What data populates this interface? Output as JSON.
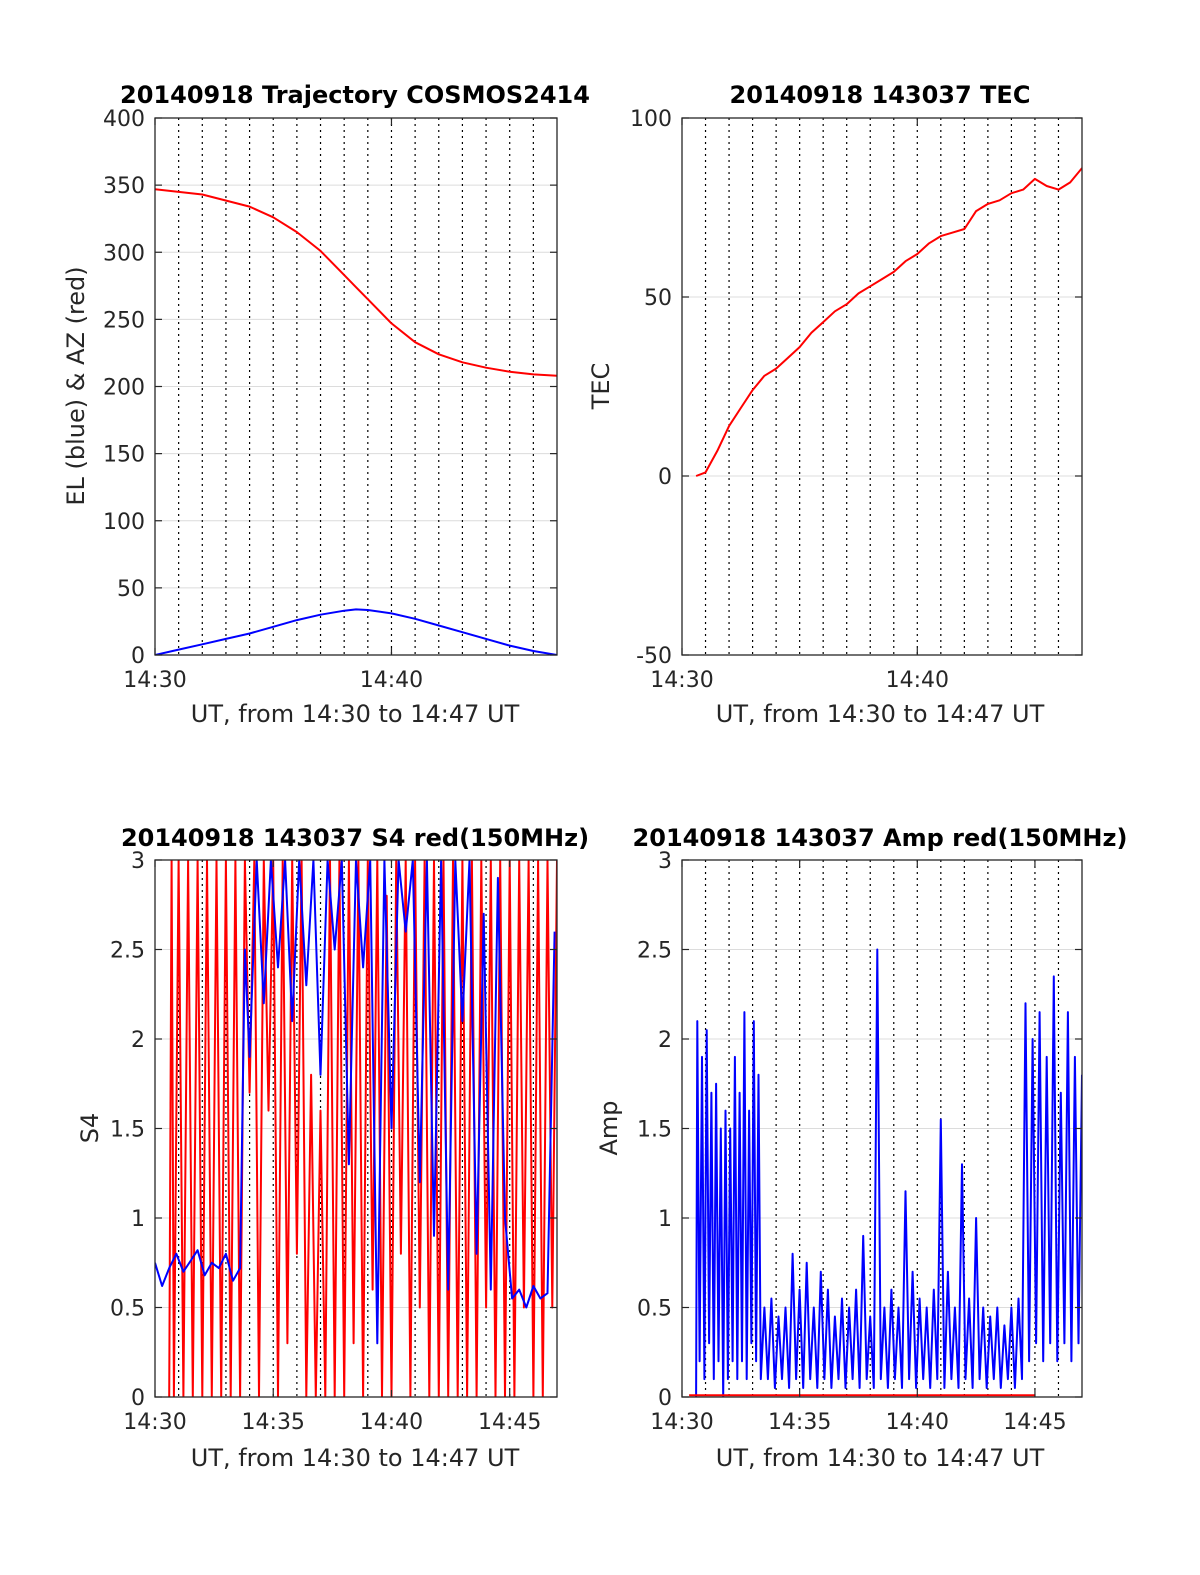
{
  "chart_data": [
    {
      "id": "trajectory",
      "type": "line",
      "title": "20140918 Trajectory COSMOS2414",
      "xlabel": "UT, from 14:30 to 14:47 UT",
      "ylabel": "EL (blue) & AZ (red)",
      "xlim": [
        0,
        17
      ],
      "ylim": [
        0,
        400
      ],
      "xticks": [
        {
          "v": 0,
          "label": "14:30"
        },
        {
          "v": 10,
          "label": "14:40"
        }
      ],
      "yticks": [
        {
          "v": 0,
          "label": "0"
        },
        {
          "v": 50,
          "label": "50"
        },
        {
          "v": 100,
          "label": "100"
        },
        {
          "v": 150,
          "label": "150"
        },
        {
          "v": 200,
          "label": "200"
        },
        {
          "v": 250,
          "label": "250"
        },
        {
          "v": 300,
          "label": "300"
        },
        {
          "v": 350,
          "label": "350"
        },
        {
          "v": 400,
          "label": "400"
        }
      ],
      "grid": true,
      "colors": {
        "AZ": "#ff0000",
        "EL": "#0000ff"
      },
      "series": [
        {
          "key": "AZ",
          "x": [
            0,
            2,
            4,
            5,
            6,
            7,
            8,
            8.5,
            9,
            10,
            11,
            12,
            13,
            14,
            15,
            16,
            17
          ],
          "values": [
            347,
            343,
            334,
            326,
            315,
            301,
            283,
            274,
            265,
            247,
            233,
            224,
            218,
            214,
            211,
            209,
            208
          ]
        },
        {
          "key": "EL",
          "x": [
            0,
            1,
            2,
            3,
            4,
            5,
            6,
            7,
            8,
            8.5,
            9,
            10,
            11,
            12,
            13,
            14,
            15,
            16,
            17
          ],
          "values": [
            0,
            4,
            8,
            12,
            16,
            21,
            26,
            30,
            33,
            34,
            33.5,
            31,
            27,
            22,
            17,
            12,
            7,
            3,
            0
          ]
        }
      ]
    },
    {
      "id": "tec",
      "type": "line",
      "title": "20140918 143037 TEC",
      "xlabel": "UT, from 14:30 to 14:47 UT",
      "ylabel": "TEC",
      "xlim": [
        0,
        17
      ],
      "ylim": [
        -50,
        100
      ],
      "xticks": [
        {
          "v": 0,
          "label": "14:30"
        },
        {
          "v": 10,
          "label": "14:40"
        }
      ],
      "yticks": [
        {
          "v": -50,
          "label": "-50"
        },
        {
          "v": 0,
          "label": "0"
        },
        {
          "v": 50,
          "label": "50"
        },
        {
          "v": 100,
          "label": "100"
        }
      ],
      "grid": true,
      "colors": {
        "TEC": "#ff0000"
      },
      "series": [
        {
          "key": "TEC",
          "x": [
            0.6,
            1.0,
            1.5,
            2,
            2.5,
            3,
            3.5,
            4,
            4.5,
            5,
            5.5,
            6,
            6.5,
            7,
            7.5,
            8,
            8.5,
            9,
            9.5,
            10,
            10.5,
            11,
            11.5,
            12,
            12.5,
            13,
            13.5,
            14,
            14.5,
            15,
            15.5,
            16,
            16.5,
            17
          ],
          "values": [
            0,
            1,
            7,
            14,
            19,
            24,
            28,
            30,
            33,
            36,
            40,
            43,
            46,
            48,
            51,
            53,
            55,
            57,
            60,
            62,
            65,
            67,
            68,
            69,
            74,
            76,
            77,
            79,
            80,
            83,
            81,
            80,
            82,
            86
          ]
        }
      ]
    },
    {
      "id": "s4",
      "type": "line",
      "title": "20140918 143037 S4 red(150MHz)",
      "xlabel": "UT, from 14:30 to 14:47 UT",
      "ylabel": "S4",
      "xlim": [
        0,
        17
      ],
      "ylim": [
        0,
        3
      ],
      "xticks": [
        {
          "v": 0,
          "label": "14:30"
        },
        {
          "v": 5,
          "label": "14:35"
        },
        {
          "v": 10,
          "label": "14:40"
        },
        {
          "v": 15,
          "label": "14:45"
        }
      ],
      "yticks": [
        {
          "v": 0,
          "label": "0"
        },
        {
          "v": 0.5,
          "label": "0.5"
        },
        {
          "v": 1,
          "label": "1"
        },
        {
          "v": 1.5,
          "label": "1.5"
        },
        {
          "v": 2,
          "label": "2"
        },
        {
          "v": 2.5,
          "label": "2.5"
        },
        {
          "v": 3,
          "label": "3"
        }
      ],
      "grid": true,
      "colors": {
        "red": "#ff0000",
        "blue": "#0000ff"
      },
      "series": [
        {
          "key": "red",
          "x": [
            0.6,
            0.7,
            0.8,
            1.0,
            1.2,
            1.4,
            1.6,
            1.8,
            2.0,
            2.2,
            2.4,
            2.6,
            2.8,
            3.0,
            3.2,
            3.4,
            3.6,
            3.8,
            4.0,
            4.2,
            4.4,
            4.6,
            4.8,
            5.0,
            5.2,
            5.4,
            5.6,
            5.8,
            6.0,
            6.2,
            6.4,
            6.6,
            6.8,
            7.0,
            7.2,
            7.4,
            7.6,
            7.8,
            8.0,
            8.2,
            8.4,
            8.6,
            8.8,
            9.0,
            9.2,
            9.4,
            9.6,
            9.8,
            10.0,
            10.2,
            10.4,
            10.6,
            10.8,
            11.0,
            11.2,
            11.4,
            11.6,
            11.8,
            12.0,
            12.2,
            12.4,
            12.6,
            12.8,
            13.0,
            13.2,
            13.4,
            13.6,
            13.8,
            14.0,
            14.2,
            14.4,
            14.6,
            14.8,
            15.0,
            15.2,
            15.4,
            15.6,
            15.8,
            16.0,
            16.2,
            16.4,
            16.6,
            16.8,
            17.0
          ],
          "values": [
            0,
            3,
            0,
            3,
            0,
            3,
            0,
            3,
            0,
            3,
            0,
            3,
            0,
            3,
            0,
            3,
            0,
            3,
            1.7,
            3,
            0,
            3,
            1.6,
            3,
            0,
            3,
            0.3,
            3,
            0.8,
            3,
            0,
            1.8,
            0,
            1.6,
            0,
            3,
            0,
            3,
            0,
            3,
            0.3,
            3,
            0,
            3,
            0.6,
            3,
            0,
            2.8,
            0,
            3,
            0.8,
            3,
            0,
            3,
            0.5,
            3,
            0,
            3,
            0,
            3,
            0,
            3,
            0,
            3,
            0,
            3,
            0,
            3,
            0.5,
            3,
            0,
            3,
            0,
            3,
            0,
            3,
            0.5,
            3,
            0,
            3,
            0,
            3,
            0.5,
            3
          ]
        },
        {
          "key": "blue",
          "x": [
            0.0,
            0.3,
            0.6,
            0.9,
            1.2,
            1.5,
            1.8,
            2.1,
            2.4,
            2.7,
            3.0,
            3.3,
            3.6,
            3.8,
            4.0,
            4.3,
            4.6,
            4.9,
            5.2,
            5.5,
            5.8,
            6.1,
            6.4,
            6.7,
            7.0,
            7.3,
            7.6,
            7.9,
            8.2,
            8.5,
            8.8,
            9.1,
            9.4,
            9.7,
            10.0,
            10.3,
            10.6,
            10.9,
            11.2,
            11.5,
            11.8,
            12.1,
            12.4,
            12.7,
            13.0,
            13.3,
            13.6,
            13.9,
            14.2,
            14.5,
            14.8,
            15.1,
            15.4,
            15.7,
            16.0,
            16.3,
            16.6,
            16.9
          ],
          "values": [
            0.75,
            0.62,
            0.72,
            0.8,
            0.7,
            0.76,
            0.82,
            0.68,
            0.75,
            0.72,
            0.8,
            0.65,
            0.72,
            2.5,
            1.9,
            3,
            2.2,
            3,
            2.4,
            3,
            2.1,
            3,
            2.3,
            3,
            1.8,
            3,
            2.5,
            3,
            1.3,
            3,
            2.4,
            3,
            0.3,
            3,
            1.5,
            3,
            2.6,
            3,
            1.2,
            3,
            0.9,
            3,
            0.6,
            3,
            2.1,
            3,
            0.8,
            2.7,
            0.6,
            2.9,
            1.0,
            0.55,
            0.6,
            0.5,
            0.62,
            0.55,
            0.58,
            2.6
          ]
        }
      ]
    },
    {
      "id": "amp",
      "type": "line",
      "title": "20140918 143037 Amp red(150MHz)",
      "xlabel": "UT, from 14:30 to 14:47 UT",
      "ylabel": "Amp",
      "xlim": [
        0,
        17
      ],
      "ylim": [
        0,
        3
      ],
      "xticks": [
        {
          "v": 0,
          "label": "14:30"
        },
        {
          "v": 5,
          "label": "14:35"
        },
        {
          "v": 10,
          "label": "14:40"
        },
        {
          "v": 15,
          "label": "14:45"
        }
      ],
      "yticks": [
        {
          "v": 0,
          "label": "0"
        },
        {
          "v": 0.5,
          "label": "0.5"
        },
        {
          "v": 1,
          "label": "1"
        },
        {
          "v": 1.5,
          "label": "1.5"
        },
        {
          "v": 2,
          "label": "2"
        },
        {
          "v": 2.5,
          "label": "2.5"
        },
        {
          "v": 3,
          "label": "3"
        }
      ],
      "grid": true,
      "colors": {
        "blue": "#0000ff",
        "red": "#ff0000"
      },
      "series": [
        {
          "key": "blue",
          "x": [
            0.6,
            0.65,
            0.75,
            0.85,
            0.95,
            1.05,
            1.15,
            1.25,
            1.35,
            1.45,
            1.55,
            1.65,
            1.75,
            1.85,
            1.95,
            2.05,
            2.15,
            2.25,
            2.35,
            2.45,
            2.55,
            2.65,
            2.75,
            2.85,
            2.95,
            3.05,
            3.15,
            3.25,
            3.35,
            3.5,
            3.65,
            3.8,
            3.95,
            4.1,
            4.25,
            4.4,
            4.55,
            4.7,
            4.85,
            5.0,
            5.15,
            5.3,
            5.45,
            5.6,
            5.75,
            5.9,
            6.05,
            6.2,
            6.35,
            6.5,
            6.65,
            6.8,
            6.95,
            7.1,
            7.25,
            7.4,
            7.55,
            7.7,
            7.85,
            8.0,
            8.15,
            8.3,
            8.45,
            8.6,
            8.75,
            8.9,
            9.05,
            9.2,
            9.35,
            9.5,
            9.65,
            9.8,
            9.95,
            10.1,
            10.25,
            10.4,
            10.55,
            10.7,
            10.85,
            11.0,
            11.15,
            11.3,
            11.45,
            11.6,
            11.75,
            11.9,
            12.05,
            12.2,
            12.35,
            12.5,
            12.65,
            12.8,
            12.95,
            13.1,
            13.25,
            13.4,
            13.55,
            13.7,
            13.85,
            14.0,
            14.15,
            14.3,
            14.45,
            14.6,
            14.75,
            14.9,
            15.05,
            15.2,
            15.35,
            15.5,
            15.65,
            15.8,
            15.95,
            16.1,
            16.25,
            16.4,
            16.55,
            16.7,
            16.85,
            17.0
          ],
          "values": [
            0,
            2.1,
            0.2,
            1.9,
            0.1,
            2.05,
            0.3,
            1.7,
            0.1,
            1.75,
            0.2,
            1.5,
            0,
            1.6,
            0.1,
            1.5,
            0.2,
            1.9,
            0.1,
            1.7,
            0.2,
            2.15,
            0.1,
            1.6,
            0.3,
            2.1,
            0.2,
            1.8,
            0.1,
            0.5,
            0.1,
            0.55,
            0.05,
            0.45,
            0.1,
            0.5,
            0.05,
            0.8,
            0.1,
            0.6,
            0.05,
            0.75,
            0.1,
            0.5,
            0.05,
            0.7,
            0.1,
            0.6,
            0.05,
            0.45,
            0.1,
            0.55,
            0.05,
            0.5,
            0.1,
            0.6,
            0.05,
            0.9,
            0.1,
            0.45,
            0.05,
            2.5,
            0.1,
            0.5,
            0.05,
            0.6,
            0.1,
            0.5,
            0.05,
            1.15,
            0.1,
            0.7,
            0.05,
            0.55,
            0.1,
            0.5,
            0.05,
            0.6,
            0.1,
            1.55,
            0.05,
            0.7,
            0.1,
            0.5,
            0.05,
            1.3,
            0.1,
            0.55,
            0.05,
            1.0,
            0.1,
            0.5,
            0.05,
            0.45,
            0.1,
            0.5,
            0.05,
            0.4,
            0.1,
            0.5,
            0.05,
            0.55,
            0.1,
            2.2,
            0.2,
            2.0,
            0.3,
            2.15,
            0.2,
            1.9,
            0.3,
            2.35,
            0.2,
            1.7,
            0.3,
            2.15,
            0.2,
            1.9,
            0.3,
            1.8
          ]
        },
        {
          "key": "red",
          "x": [
            0.3,
            0.6,
            14.2,
            14.6,
            15.0
          ],
          "values": [
            0.01,
            0.01,
            0.01,
            0.01,
            0.01
          ]
        }
      ]
    }
  ]
}
